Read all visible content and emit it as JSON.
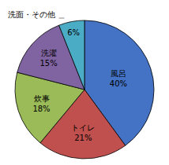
{
  "chart_data": {
    "type": "pie",
    "categories": [
      "風呂",
      "トイレ",
      "炊事",
      "洗濯",
      null
    ],
    "values": [
      40,
      21,
      18,
      15,
      6
    ],
    "value_labels": [
      "40%",
      "21%",
      "18%",
      "15%",
      "6%"
    ],
    "colors": [
      "#4472C4",
      "#C0504D",
      "#9BBB59",
      "#8064A2",
      "#4BACC6"
    ],
    "annotation": "洗面・その他 ＿",
    "data_labels": true
  }
}
